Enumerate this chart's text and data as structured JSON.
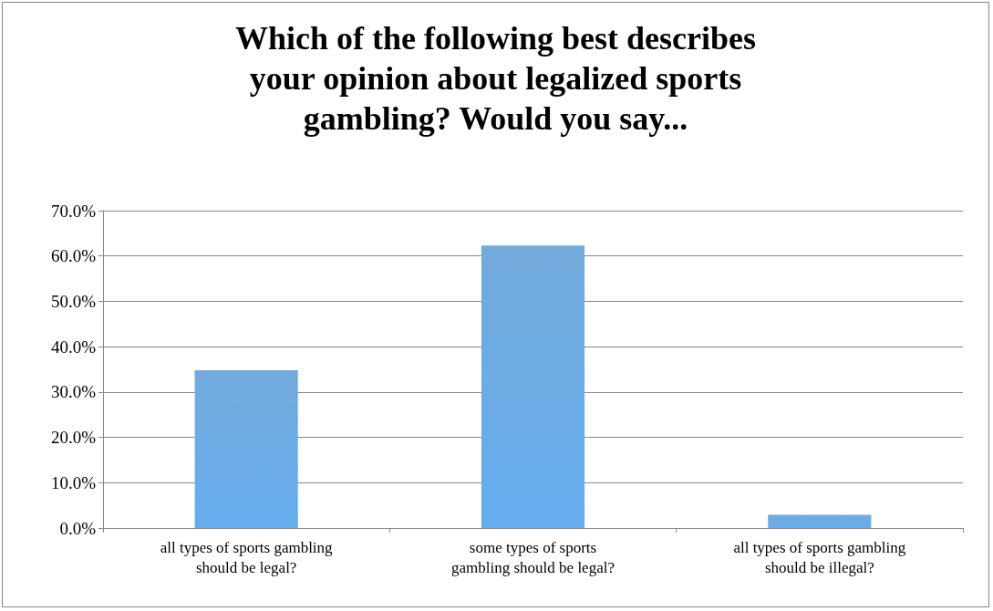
{
  "chart_data": {
    "type": "bar",
    "title": "Which of the following best describes\nyour opinion about legalized sports\ngambling? Would you say...",
    "categories": [
      "all types of sports gambling\nshould be legal?",
      "some types of sports\ngambling should be legal?",
      "all types of sports gambling\nshould be illegal?"
    ],
    "values": [
      34.8,
      62.3,
      2.9
    ],
    "color": "#5b9bd5",
    "ylim": [
      0,
      70
    ],
    "yticks": [
      {
        "value": 0,
        "label": "0.0%"
      },
      {
        "value": 10,
        "label": "10.0%"
      },
      {
        "value": 20,
        "label": "20.0%"
      },
      {
        "value": 30,
        "label": "30.0%"
      },
      {
        "value": 40,
        "label": "40.0%"
      },
      {
        "value": 50,
        "label": "50.0%"
      },
      {
        "value": 60,
        "label": "60.0%"
      },
      {
        "value": 70,
        "label": "70.0%"
      }
    ],
    "grid": "y"
  }
}
